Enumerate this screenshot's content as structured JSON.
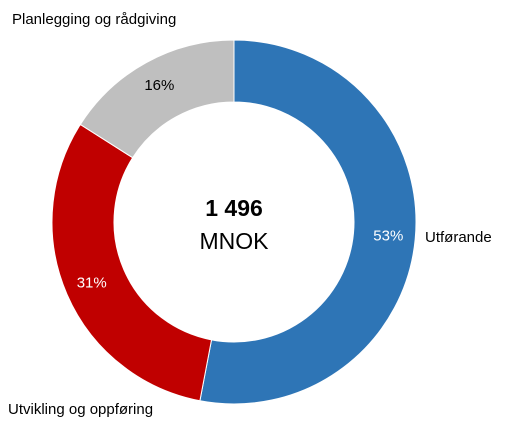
{
  "chart_data": {
    "type": "pie",
    "donut": true,
    "categories": [
      "Utførande",
      "Utvikling og oppføring",
      "Planlegging og rådgiving"
    ],
    "values": [
      53,
      31,
      16
    ],
    "value_labels": [
      "53%",
      "31%",
      "16%"
    ],
    "colors": [
      "#2e75b6",
      "#c00000",
      "#bfbfbf"
    ],
    "annotations": [
      "1 496",
      "MNOK"
    ]
  }
}
